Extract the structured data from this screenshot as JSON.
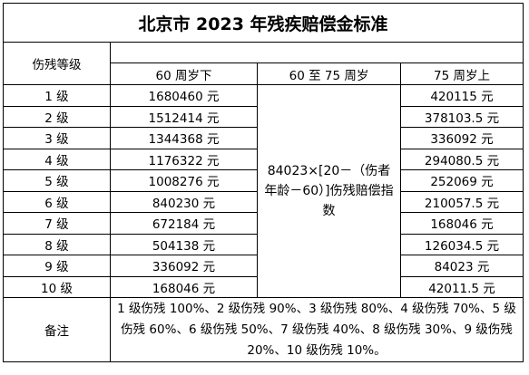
{
  "title": "北京市 2023 年残疾赔偿金标准",
  "header": {
    "level_col": "伤残等级",
    "under60": "60 周岁下",
    "between": "60 至 75 周岁",
    "over75": "75 周岁上"
  },
  "formula": "84023×[20－（伤者年龄－60）]伤残赔偿指数",
  "rows": [
    {
      "level": "1 级",
      "under60": "1680460 元",
      "over75": "420115 元"
    },
    {
      "level": "2 级",
      "under60": "1512414 元",
      "over75": "378103.5 元"
    },
    {
      "level": "3 级",
      "under60": "1344368 元",
      "over75": "336092 元"
    },
    {
      "level": "4 级",
      "under60": "1176322 元",
      "over75": "294080.5 元"
    },
    {
      "level": "5 级",
      "under60": "1008276 元",
      "over75": "252069 元"
    },
    {
      "level": "6 级",
      "under60": "840230 元",
      "over75": "210057.5 元"
    },
    {
      "level": "7 级",
      "under60": "672184 元",
      "over75": "168046 元"
    },
    {
      "level": "8 级",
      "under60": "504138 元",
      "over75": "126034.5 元"
    },
    {
      "level": "9 级",
      "under60": "336092 元",
      "over75": "84023 元"
    },
    {
      "level": "10 级",
      "under60": "168046 元",
      "over75": "42011.5 元"
    }
  ],
  "note_label": "备注",
  "note_text": "1 级伤残 100%、2 级伤残 90%、3 级伤残 80%、4 级伤残 70%、5 级伤残 60%、6 级伤残 50%、7 级伤残 40%、8 级伤残 30%、9 级伤残 20%、10 级伤残 10%。"
}
